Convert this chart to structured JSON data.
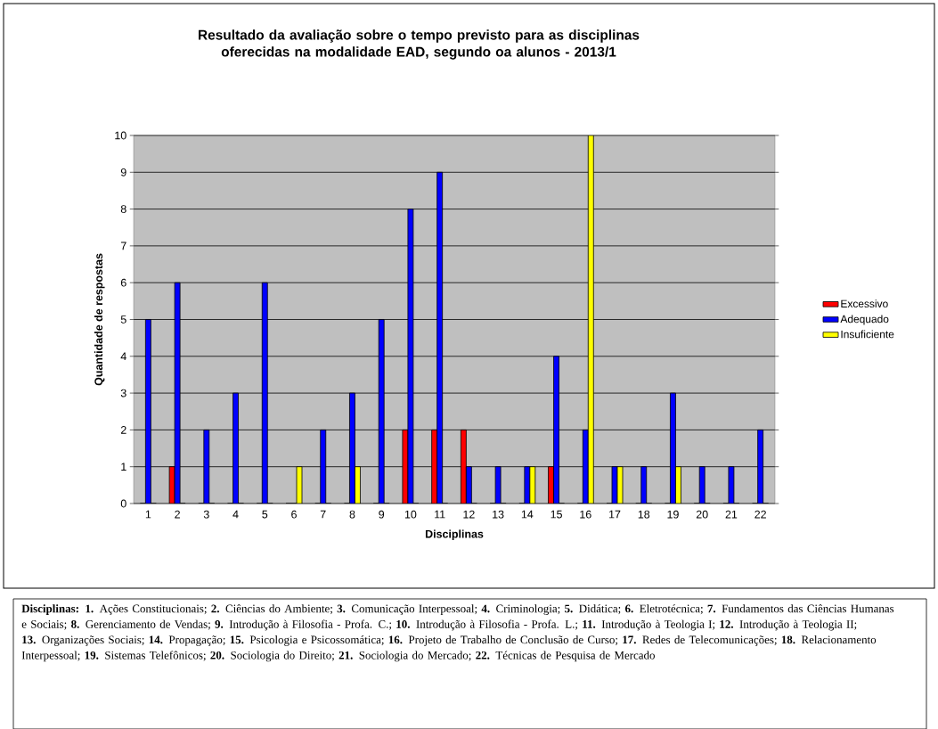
{
  "chart_data": {
    "type": "bar",
    "title": "Resultado da avaliação sobre o tempo previsto para as disciplinas oferecidas na modalidade EAD, segundo oa alunos - 2013/1",
    "xlabel": "Disciplinas",
    "ylabel": "Quantidade de respostas",
    "categories": [
      "1",
      "2",
      "3",
      "4",
      "5",
      "6",
      "7",
      "8",
      "9",
      "10",
      "11",
      "12",
      "13",
      "14",
      "15",
      "16",
      "17",
      "18",
      "19",
      "20",
      "21",
      "22"
    ],
    "series": [
      {
        "name": "Excessivo",
        "color": "#ff0000",
        "values": [
          0,
          1,
          0,
          0,
          0,
          0,
          0,
          0,
          0,
          2,
          2,
          2,
          0,
          0,
          1,
          0,
          0,
          0,
          0,
          0,
          0,
          0
        ]
      },
      {
        "name": "Adequado",
        "color": "#0000ff",
        "values": [
          5,
          6,
          2,
          3,
          6,
          0,
          2,
          3,
          5,
          8,
          9,
          1,
          1,
          1,
          4,
          2,
          1,
          1,
          3,
          1,
          1,
          2
        ]
      },
      {
        "name": "Insuficiente",
        "color": "#ffff00",
        "values": [
          0,
          0,
          0,
          0,
          0,
          1,
          0,
          1,
          0,
          0,
          0,
          0,
          0,
          1,
          0,
          10,
          1,
          0,
          1,
          0,
          0,
          0
        ]
      }
    ],
    "ylim": [
      0,
      10
    ],
    "yticks": [
      0,
      1,
      2,
      3,
      4,
      5,
      6,
      7,
      8,
      9,
      10
    ],
    "grid": "y",
    "legend": "right",
    "annotations": [
      "**Disciplinas: 1.** Ações Constitucionais; **2.** Ciências do Ambiente; **3.** Comunicação Interpessoal; **4.**  Criminologia; **5.** Didática; **6.** Eletrotécnica; **7.** Fundamentos das Ciências Humanas e Sociais; **8.** Gerenciamento de Vendas; **9.** Introdução à Filosofia - Profa. C.; **10.** Introdução à Filosofia - Profa. L.; **11.** Introdução à Teologia I; **12.** Introdução à Teologia II; **13.** Organizações Sociais; **14.** Propagação; **15.** Psicologia e Psicossomática; **16.** Projeto de Trabalho de Conclusão de Curso; **17.** Redes de Telecomunicações; **18.** Relacionamento Interpessoal; **19.** Sistemas Telefônicos; **20.** Sociologia do Direito; **21.** Sociologia do Mercado; **22.** Técnicas de Pesquisa de Mercado"
    ]
  }
}
